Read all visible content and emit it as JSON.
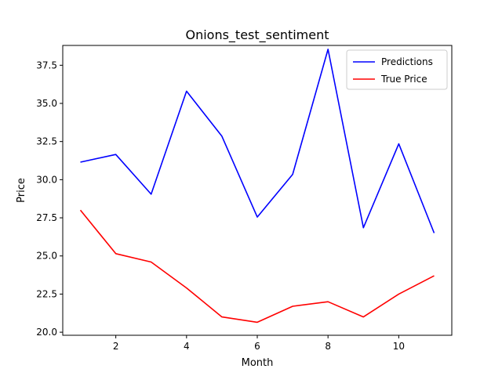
{
  "chart_data": {
    "type": "line",
    "title": "Onions_test_sentiment",
    "xlabel": "Month",
    "ylabel": "Price",
    "xlim": [
      0.5,
      11.5
    ],
    "ylim": [
      19.8,
      38.8
    ],
    "xticks": [
      2,
      4,
      6,
      8,
      10
    ],
    "xtick_labels": [
      "2",
      "4",
      "6",
      "8",
      "10"
    ],
    "yticks": [
      20.0,
      22.5,
      25.0,
      27.5,
      30.0,
      32.5,
      35.0,
      37.5
    ],
    "ytick_labels": [
      "20.0",
      "22.5",
      "25.0",
      "27.5",
      "30.0",
      "32.5",
      "35.0",
      "37.5"
    ],
    "grid": false,
    "legend_position": "top-right",
    "x": [
      1,
      2,
      3,
      4,
      5,
      6,
      7,
      8,
      9,
      10,
      11
    ],
    "series": [
      {
        "name": "Predictions",
        "color": "#0000ff",
        "values": [
          31.15,
          31.65,
          29.05,
          35.8,
          32.85,
          27.55,
          30.35,
          38.55,
          26.85,
          32.35,
          26.5
        ]
      },
      {
        "name": "True Price",
        "color": "#ff0000",
        "values": [
          28.0,
          25.15,
          24.6,
          22.9,
          21.0,
          20.65,
          21.7,
          22.0,
          21.0,
          22.5,
          23.7
        ]
      }
    ]
  }
}
